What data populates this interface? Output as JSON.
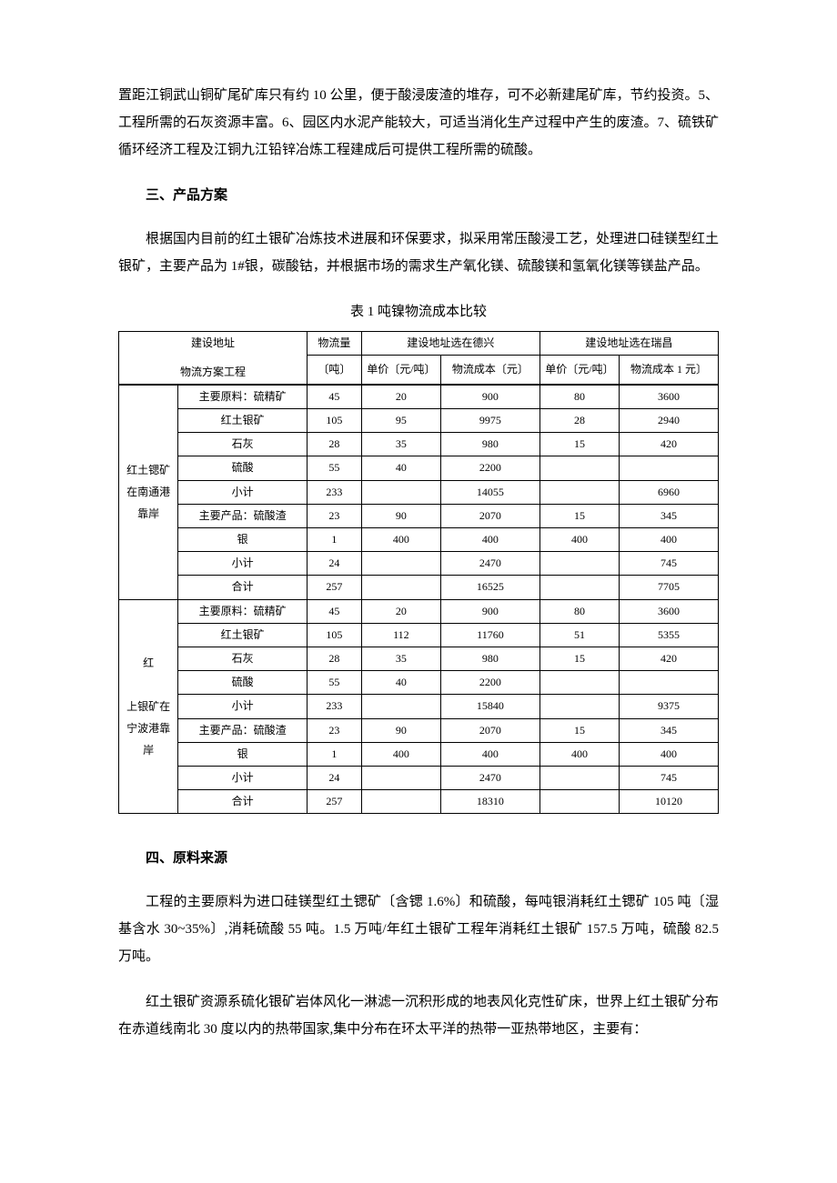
{
  "paragraphs": {
    "p1": "置距江铜武山铜矿尾矿库只有约 10 公里，便于酸浸废渣的堆存，可不必新建尾矿库，节约投资。5、工程所需的石灰资源丰富。6、园区内水泥产能较大，可适当消化生产过程中产生的废渣。7、硫铁矿循环经济工程及江铜九江铅锌冶炼工程建成后可提供工程所需的硫酸。",
    "h3": "三、产品方案",
    "p3": "根据国内目前的红土银矿冶炼技术进展和环保要求，拟采用常压酸浸工艺，处理进口硅镁型红土银矿，主要产品为 1#银，碳酸钴，并根据市场的需求生产氧化镁、硫酸镁和氢氧化镁等镁盐产品。",
    "table_title": "表 1 吨镍物流成本比较",
    "h4": "四、原料来源",
    "p4": "工程的主要原料为进口硅镁型红土锶矿〔含锶 1.6%〕和硫酸，每吨银消耗红土锶矿 105 吨〔湿基含水 30~35%〕,消耗硫酸 55 吨。1.5 万吨/年红土银矿工程年消耗红土银矿 157.5 万吨，硫酸 82.5 万吨。",
    "p5": "红土银矿资源系硫化银矿岩体风化一淋滤一沉积形成的地表风化克性矿床，世界上红土银矿分布在赤道线南北 30 度以内的热带国家,集中分布在环太平洋的热带一亚热带地区，主要有："
  },
  "table": {
    "head": {
      "addr": "建设地址",
      "vol": "物流量",
      "vol_unit": "〔吨〕",
      "scheme": "物流方案工程",
      "loc_a": "建设地址选在德兴",
      "loc_b": "建设地址选在瑞昌",
      "unit_price_a": "单价〔元/吨〕",
      "cost_a": "物流成本〔元〕",
      "unit_price_b": "单价〔元/吨〕",
      "cost_b": "物流成本 1 元〕"
    },
    "groups": [
      {
        "label_lines": [
          "红土锶矿",
          "在南通港",
          "靠岸"
        ],
        "rows": [
          {
            "item": "主要原料：硫精矿",
            "vol": "45",
            "pa": "20",
            "ca": "900",
            "pb": "80",
            "cb": "3600"
          },
          {
            "item": "红土银矿",
            "vol": "105",
            "pa": "95",
            "ca": "9975",
            "pb": "28",
            "cb": "2940"
          },
          {
            "item": "石灰",
            "vol": "28",
            "pa": "35",
            "ca": "980",
            "pb": "15",
            "cb": "420"
          },
          {
            "item": "硫酸",
            "vol": "55",
            "pa": "40",
            "ca": "2200",
            "pb": "",
            "cb": ""
          },
          {
            "item": "小计",
            "vol": "233",
            "pa": "",
            "ca": "14055",
            "pb": "",
            "cb": "6960"
          },
          {
            "item": "主要产品：硫酸渣",
            "vol": "23",
            "pa": "90",
            "ca": "2070",
            "pb": "15",
            "cb": "345"
          },
          {
            "item": "银",
            "vol": "1",
            "pa": "400",
            "ca": "400",
            "pb": "400",
            "cb": "400"
          },
          {
            "item": "小计",
            "vol": "24",
            "pa": "",
            "ca": "2470",
            "pb": "",
            "cb": "745"
          },
          {
            "item": "合计",
            "vol": "257",
            "pa": "",
            "ca": "16525",
            "pb": "",
            "cb": "7705"
          }
        ]
      },
      {
        "label_lines": [
          "红",
          "",
          "上银矿在",
          "宁波港靠",
          "岸"
        ],
        "rows": [
          {
            "item": "主要原料：硫精矿",
            "vol": "45",
            "pa": "20",
            "ca": "900",
            "pb": "80",
            "cb": "3600"
          },
          {
            "item": "红土银矿",
            "vol": "105",
            "pa": "112",
            "ca": "11760",
            "pb": "51",
            "cb": "5355"
          },
          {
            "item": "石灰",
            "vol": "28",
            "pa": "35",
            "ca": "980",
            "pb": "15",
            "cb": "420"
          },
          {
            "item": "硫酸",
            "vol": "55",
            "pa": "40",
            "ca": "2200",
            "pb": "",
            "cb": ""
          },
          {
            "item": "小计",
            "vol": "233",
            "pa": "",
            "ca": "15840",
            "pb": "",
            "cb": "9375"
          },
          {
            "item": "主要产品：硫酸渣",
            "vol": "23",
            "pa": "90",
            "ca": "2070",
            "pb": "15",
            "cb": "345"
          },
          {
            "item": "银",
            "vol": "1",
            "pa": "400",
            "ca": "400",
            "pb": "400",
            "cb": "400"
          },
          {
            "item": "小计",
            "vol": "24",
            "pa": "",
            "ca": "2470",
            "pb": "",
            "cb": "745"
          },
          {
            "item": "合计",
            "vol": "257",
            "pa": "",
            "ca": "18310",
            "pb": "",
            "cb": "10120"
          }
        ]
      }
    ]
  }
}
